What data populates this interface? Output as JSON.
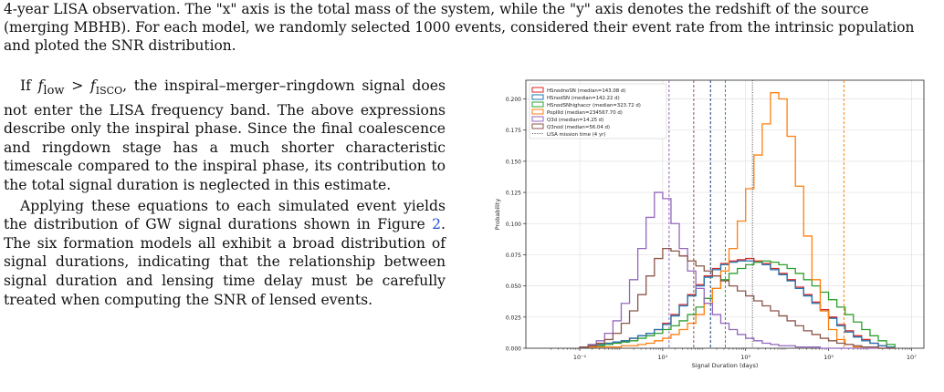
{
  "caption": {
    "line1": "4-year LISA observation. The \"x\" axis is the total mass of the system, while the \"y\" axis denotes the redshift of the source",
    "line2": "(merging MBHB). For each model, we randomly selected 1000 events, considered their event rate from the intrinsic population",
    "line3": "and ploted the SNR distribution."
  },
  "body": {
    "p1_a": "If ",
    "p1_math": "f",
    "p1_sub1": "low",
    "p1_gt": " > ",
    "p1_math2": "f",
    "p1_sub2": "ISCO",
    "p1_b": ", the inspiral–merger–ringdown signal does not enter the LISA frequency band. The above expressions describe only the inspiral phase. Since the final coalescence and ringdown stage has a much shorter characteristic timescale compared to the inspiral phase, its contribution to the total signal duration is neglected in this estimate.",
    "p2_a": "Applying these equations to each simulated event yields the distribution of GW signal durations shown in Figure ",
    "p2_ref": "2",
    "p2_b": ". The six formation models all exhibit a broad distribution of signal durations, indicating that the relationship between signal duration and lensing time delay must be carefully treated when computing the SNR of lensed events."
  },
  "chart_data": {
    "type": "histogram",
    "xlabel": "Signal Duration (days)",
    "ylabel": "Probability",
    "xscale": "log",
    "xlim_log10": [
      -2.3,
      7.3
    ],
    "ylim": [
      0,
      0.215
    ],
    "xtick_labels": [
      "10⁻¹",
      "10¹",
      "10³",
      "10⁵",
      "10⁷"
    ],
    "xtick_log10": [
      -1,
      1,
      3,
      5,
      7
    ],
    "ytick_labels": [
      "0.000",
      "0.025",
      "0.050",
      "0.075",
      "0.100",
      "0.125",
      "0.150",
      "0.175",
      "0.200"
    ],
    "ytick_values": [
      0,
      0.025,
      0.05,
      0.075,
      0.1,
      0.125,
      0.15,
      0.175,
      0.2
    ],
    "grid": true,
    "legend_position": "top-left",
    "bin_log10_start": -1.0,
    "bin_log10_width": 0.2,
    "series": [
      {
        "name": "HSnodnoSN (median=143.08 d)",
        "color": "#d62728",
        "median_days": 143.08,
        "values": [
          0.001,
          0.002,
          0.003,
          0.004,
          0.005,
          0.006,
          0.008,
          0.01,
          0.012,
          0.015,
          0.02,
          0.027,
          0.035,
          0.043,
          0.051,
          0.058,
          0.064,
          0.068,
          0.07,
          0.071,
          0.072,
          0.07,
          0.068,
          0.064,
          0.06,
          0.055,
          0.049,
          0.043,
          0.037,
          0.031,
          0.025,
          0.019,
          0.014,
          0.01,
          0.007,
          0.004,
          0.002,
          0.001
        ]
      },
      {
        "name": "HSnodSN (median=142.22 d)",
        "color": "#1f77b4",
        "median_days": 142.22,
        "values": [
          0.001,
          0.002,
          0.003,
          0.004,
          0.005,
          0.006,
          0.008,
          0.01,
          0.012,
          0.015,
          0.019,
          0.026,
          0.034,
          0.042,
          0.05,
          0.057,
          0.063,
          0.067,
          0.069,
          0.07,
          0.07,
          0.069,
          0.067,
          0.063,
          0.059,
          0.054,
          0.048,
          0.042,
          0.036,
          0.03,
          0.024,
          0.018,
          0.013,
          0.009,
          0.006,
          0.004,
          0.002,
          0.001
        ]
      },
      {
        "name": "HSnodSNhighaccr (median=323.72 d)",
        "color": "#2ca02c",
        "median_days": 323.72,
        "values": [
          0.001,
          0.001,
          0.002,
          0.003,
          0.004,
          0.005,
          0.006,
          0.008,
          0.01,
          0.012,
          0.015,
          0.018,
          0.022,
          0.027,
          0.033,
          0.04,
          0.048,
          0.055,
          0.06,
          0.064,
          0.067,
          0.069,
          0.07,
          0.069,
          0.067,
          0.064,
          0.06,
          0.055,
          0.05,
          0.045,
          0.039,
          0.033,
          0.027,
          0.021,
          0.015,
          0.01,
          0.006,
          0.003
        ]
      },
      {
        "name": "PopIIId (median=234567.70 d)",
        "color": "#ff7f0e",
        "median_days": 234567.7,
        "values": [
          0.001,
          0.001,
          0.001,
          0.001,
          0.001,
          0.002,
          0.002,
          0.003,
          0.004,
          0.006,
          0.008,
          0.011,
          0.015,
          0.02,
          0.027,
          0.036,
          0.048,
          0.062,
          0.08,
          0.102,
          0.128,
          0.155,
          0.18,
          0.205,
          0.2,
          0.17,
          0.13,
          0.09,
          0.055,
          0.03,
          0.015,
          0.007,
          0.003,
          0.001,
          0.001,
          0.001,
          0.0,
          0.0
        ]
      },
      {
        "name": "Q3d (median=14.25 d)",
        "color": "#9467bd",
        "median_days": 14.25,
        "values": [
          0.001,
          0.003,
          0.006,
          0.012,
          0.022,
          0.036,
          0.055,
          0.08,
          0.105,
          0.125,
          0.12,
          0.1,
          0.08,
          0.062,
          0.048,
          0.036,
          0.027,
          0.02,
          0.015,
          0.011,
          0.008,
          0.006,
          0.004,
          0.003,
          0.002,
          0.002,
          0.001,
          0.001,
          0.001,
          0.0,
          0.0,
          0.0,
          0.0,
          0.0,
          0.0,
          0.0,
          0.0,
          0.0
        ]
      },
      {
        "name": "Q3nod (median=56.04 d)",
        "color": "#8c564b",
        "median_days": 56.04,
        "values": [
          0.001,
          0.002,
          0.004,
          0.007,
          0.012,
          0.02,
          0.03,
          0.043,
          0.058,
          0.072,
          0.08,
          0.078,
          0.074,
          0.07,
          0.066,
          0.062,
          0.058,
          0.054,
          0.05,
          0.046,
          0.042,
          0.038,
          0.034,
          0.03,
          0.026,
          0.022,
          0.018,
          0.014,
          0.011,
          0.008,
          0.006,
          0.004,
          0.003,
          0.002,
          0.001,
          0.001,
          0.0,
          0.0
        ]
      }
    ],
    "reference_line": {
      "name": "LISA mission time (4 yr)",
      "color": "#444444",
      "days": 1461
    }
  }
}
